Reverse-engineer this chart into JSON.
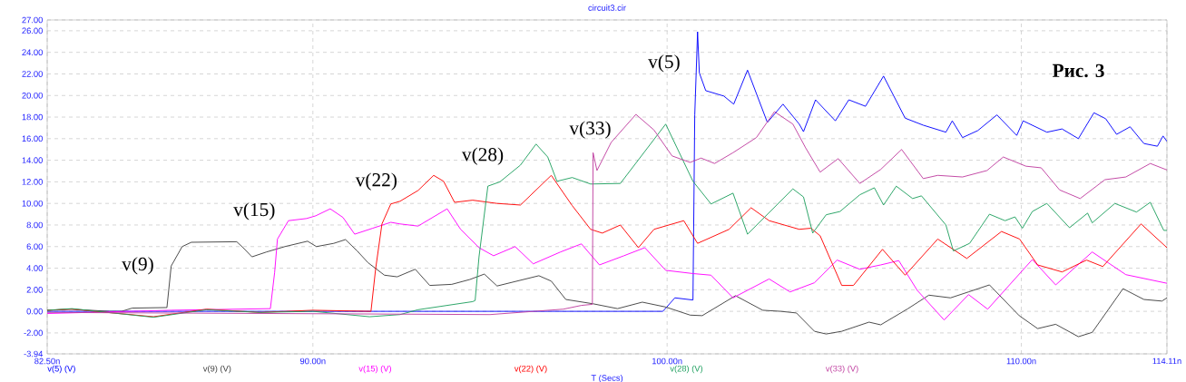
{
  "chart_data": {
    "type": "line",
    "title": "circuit3.cir",
    "xlabel": "T (Secs)",
    "xlim": [
      82.5,
      114.11
    ],
    "ylim": [
      -3.94,
      27.0
    ],
    "xticks": [
      {
        "value": 82.5,
        "label": "82.50n"
      },
      {
        "value": 90.0,
        "label": "90.00n"
      },
      {
        "value": 100.0,
        "label": "100.00n"
      },
      {
        "value": 110.0,
        "label": "110.00n"
      },
      {
        "value": 114.11,
        "label": "114.11n"
      }
    ],
    "yticks": [
      {
        "value": -3.94,
        "label": "-3.94"
      },
      {
        "value": -2.0,
        "label": "-2.00"
      },
      {
        "value": 0.0,
        "label": "0.00"
      },
      {
        "value": 2.0,
        "label": "2.00"
      },
      {
        "value": 4.0,
        "label": "4.00"
      },
      {
        "value": 6.0,
        "label": "6.00"
      },
      {
        "value": 8.0,
        "label": "8.00"
      },
      {
        "value": 10.0,
        "label": "10.00"
      },
      {
        "value": 12.0,
        "label": "12.00"
      },
      {
        "value": 14.0,
        "label": "14.00"
      },
      {
        "value": 16.0,
        "label": "16.00"
      },
      {
        "value": 18.0,
        "label": "18.00"
      },
      {
        "value": 20.0,
        "label": "20.00"
      },
      {
        "value": 22.0,
        "label": "22.00"
      },
      {
        "value": 24.0,
        "label": "24.00"
      },
      {
        "value": 26.0,
        "label": "26.00"
      },
      {
        "value": 27.0,
        "label": "27.00"
      }
    ],
    "grid": true,
    "series": [
      {
        "name": "v(5) (V)",
        "color": "#0000ff",
        "x": [
          82.5,
          99.88,
          100.22,
          100.73,
          100.78,
          100.86,
          100.91,
          101.09,
          101.6,
          101.88,
          102.27,
          102.83,
          103.27,
          103.73,
          103.85,
          104.19,
          104.75,
          105.13,
          105.6,
          106.11,
          106.72,
          107.23,
          107.87,
          108.05,
          108.34,
          108.77,
          109.31,
          109.87,
          110.05,
          110.72,
          111.15,
          111.61,
          112.05,
          112.38,
          112.69,
          113.07,
          113.46,
          113.84,
          114.0,
          114.11
        ],
        "values": [
          0,
          0,
          1.25,
          1.05,
          18.2,
          25.9,
          22.1,
          20.45,
          19.95,
          19.2,
          22.35,
          17.5,
          19.2,
          17.35,
          16.65,
          19.6,
          17.65,
          19.6,
          19.0,
          21.8,
          17.9,
          17.25,
          16.6,
          17.65,
          16.1,
          16.75,
          18.2,
          16.3,
          17.65,
          16.6,
          16.9,
          16.0,
          18.4,
          17.85,
          16.4,
          17.1,
          15.55,
          15.3,
          16.25,
          15.75
        ]
      },
      {
        "name": "v(9) (V)",
        "color": "#404040",
        "x": [
          82.5,
          83.16,
          84.26,
          84.6,
          84.9,
          85.85,
          85.88,
          86.0,
          86.31,
          86.57,
          87.85,
          88.03,
          88.28,
          88.69,
          89.21,
          89.85,
          90.1,
          90.59,
          90.92,
          91.25,
          91.56,
          92.02,
          92.38,
          92.89,
          93.3,
          93.92,
          94.43,
          94.84,
          95.2,
          96.38,
          96.73,
          97.14,
          97.91,
          98.6,
          99.3,
          99.96,
          100.65,
          100.99,
          101.93,
          102.7,
          103.21,
          103.65,
          104.16,
          104.49,
          104.93,
          105.7,
          106.03,
          106.8,
          107.39,
          108.0,
          108.51,
          109.1,
          109.94,
          110.46,
          110.97,
          111.61,
          112.0,
          112.87,
          113.46,
          113.97,
          114.11
        ],
        "values": [
          0.1,
          0.2,
          0,
          0,
          0.3,
          0.35,
          0.35,
          4.2,
          6.0,
          6.4,
          6.45,
          5.9,
          5.05,
          5.5,
          6.0,
          6.5,
          6.0,
          6.3,
          6.65,
          5.6,
          4.5,
          3.35,
          3.2,
          3.9,
          2.4,
          2.5,
          2.95,
          3.45,
          2.35,
          3.3,
          2.8,
          1.1,
          0.7,
          0.25,
          0.85,
          0.4,
          -0.35,
          -0.4,
          1.45,
          0.1,
          0,
          -0.15,
          -1.85,
          -2.1,
          -1.85,
          -1.0,
          -1.25,
          0.25,
          1.5,
          1.25,
          1.8,
          2.45,
          -0.4,
          -1.6,
          -1.2,
          -2.35,
          -1.95,
          2.1,
          1.1,
          0.95,
          1.25
        ]
      },
      {
        "name": "v(15) (V)",
        "color": "#ff00ff",
        "x": [
          82.5,
          86.0,
          88.8,
          88.92,
          89.0,
          89.31,
          89.82,
          90.08,
          90.49,
          90.85,
          91.18,
          91.69,
          92.2,
          92.46,
          92.97,
          93.79,
          94.17,
          94.69,
          95.1,
          95.71,
          96.22,
          96.99,
          97.58,
          98.09,
          98.78,
          99.37,
          99.96,
          100.73,
          101.24,
          101.86,
          102.27,
          102.88,
          103.47,
          104.16,
          104.8,
          105.44,
          106.03,
          106.54,
          107.06,
          107.82,
          108.51,
          109.05,
          110.31,
          110.97,
          112.0,
          112.95,
          114.11
        ],
        "values": [
          -0.2,
          0.1,
          0.25,
          3.6,
          6.7,
          8.4,
          8.6,
          8.85,
          9.5,
          8.7,
          7.15,
          7.7,
          8.25,
          8.1,
          7.9,
          9.5,
          7.6,
          5.9,
          5.15,
          6.0,
          4.4,
          5.5,
          6.25,
          4.3,
          5.15,
          5.9,
          3.8,
          3.5,
          3.35,
          1.25,
          1.95,
          3.0,
          1.8,
          2.65,
          4.75,
          3.9,
          4.3,
          4.7,
          1.95,
          -0.8,
          1.55,
          0.2,
          4.8,
          2.45,
          5.5,
          3.4,
          2.6
        ]
      },
      {
        "name": "v(22) (V)",
        "color": "#ff0000",
        "x": [
          82.5,
          83.2,
          85.5,
          87.0,
          88.5,
          90.0,
          91.64,
          91.77,
          91.95,
          92.2,
          92.46,
          92.97,
          93.41,
          93.69,
          94.0,
          94.51,
          95.2,
          95.86,
          96.73,
          97.32,
          97.84,
          98.17,
          98.68,
          99.19,
          99.63,
          100.47,
          100.86,
          101.75,
          102.37,
          102.88,
          103.73,
          104.06,
          104.32,
          104.93,
          105.26,
          106.08,
          106.72,
          107.64,
          108.46,
          109.44,
          109.95,
          110.46,
          111.15,
          111.84,
          112.3,
          113.38,
          114.11
        ],
        "values": [
          0.1,
          0.2,
          -0.5,
          0.2,
          -0.1,
          0.1,
          0,
          3.9,
          8.1,
          9.95,
          10.2,
          11.2,
          12.6,
          12.05,
          10.1,
          10.3,
          10.0,
          9.85,
          12.6,
          9.8,
          7.6,
          7.25,
          8.0,
          5.9,
          7.6,
          8.4,
          6.3,
          7.6,
          9.6,
          8.4,
          7.6,
          7.7,
          7.0,
          2.4,
          2.4,
          5.75,
          3.35,
          6.7,
          4.9,
          7.4,
          6.7,
          4.3,
          3.65,
          4.75,
          4.15,
          8.1,
          5.9
        ]
      },
      {
        "name": "v(28) (V)",
        "color": "#20a060",
        "x": [
          82.5,
          83.2,
          85.5,
          87.0,
          88.5,
          90.0,
          91.6,
          92.46,
          92.97,
          94.51,
          94.58,
          94.69,
          94.94,
          95.28,
          95.86,
          96.3,
          96.63,
          96.89,
          97.32,
          97.84,
          98.68,
          99.96,
          100.73,
          101.24,
          101.86,
          102.27,
          103.55,
          103.85,
          104.11,
          104.49,
          104.88,
          105.44,
          105.85,
          106.11,
          106.47,
          106.93,
          107.18,
          107.87,
          108.08,
          108.54,
          109.1,
          109.54,
          109.82,
          110.03,
          110.31,
          110.72,
          111.36,
          111.87,
          112.0,
          112.64,
          113.25,
          113.64,
          114.02,
          114.11
        ],
        "values": [
          0.1,
          0.25,
          -0.55,
          0.15,
          -0.1,
          0,
          -0.5,
          -0.3,
          0.15,
          0.9,
          1.0,
          5.05,
          11.6,
          12.0,
          13.55,
          15.5,
          14.3,
          12.05,
          12.4,
          11.8,
          11.85,
          17.35,
          12.05,
          9.95,
          10.95,
          7.15,
          11.35,
          10.6,
          7.25,
          8.95,
          9.25,
          10.8,
          11.45,
          9.85,
          11.6,
          10.45,
          10.7,
          8.0,
          5.6,
          6.3,
          9.0,
          8.4,
          8.75,
          7.7,
          9.25,
          10.0,
          7.75,
          9.1,
          8.2,
          10.0,
          9.2,
          10.1,
          7.5,
          7.5
        ]
      },
      {
        "name": "v(33) (V)",
        "color": "#c040a0",
        "x": [
          82.5,
          95.0,
          97.07,
          97.58,
          97.89,
          97.91,
          98.02,
          98.42,
          99.12,
          99.63,
          100.14,
          100.65,
          100.96,
          101.34,
          101.86,
          102.52,
          103.03,
          103.55,
          103.91,
          104.32,
          104.83,
          105.44,
          106.03,
          106.62,
          107.23,
          107.64,
          108.34,
          109.03,
          109.49,
          110.13,
          110.56,
          111.08,
          111.66,
          112.36,
          112.95,
          113.64,
          114.11
        ],
        "values": [
          -0.1,
          -0.3,
          0.2,
          0.55,
          0.65,
          14.7,
          13.05,
          15.65,
          18.25,
          16.8,
          14.4,
          13.8,
          14.2,
          13.7,
          14.7,
          16.1,
          18.5,
          17.35,
          15.15,
          12.9,
          14.15,
          11.85,
          13.15,
          15.0,
          12.3,
          12.6,
          12.45,
          13.05,
          14.3,
          13.45,
          13.3,
          11.25,
          10.45,
          12.2,
          12.45,
          13.7,
          13.1
        ]
      }
    ],
    "annotations": [
      "v(9)",
      "v(15)",
      "v(22)",
      "v(28)",
      "v(33)",
      "v(5)",
      "Рис. 3"
    ]
  }
}
